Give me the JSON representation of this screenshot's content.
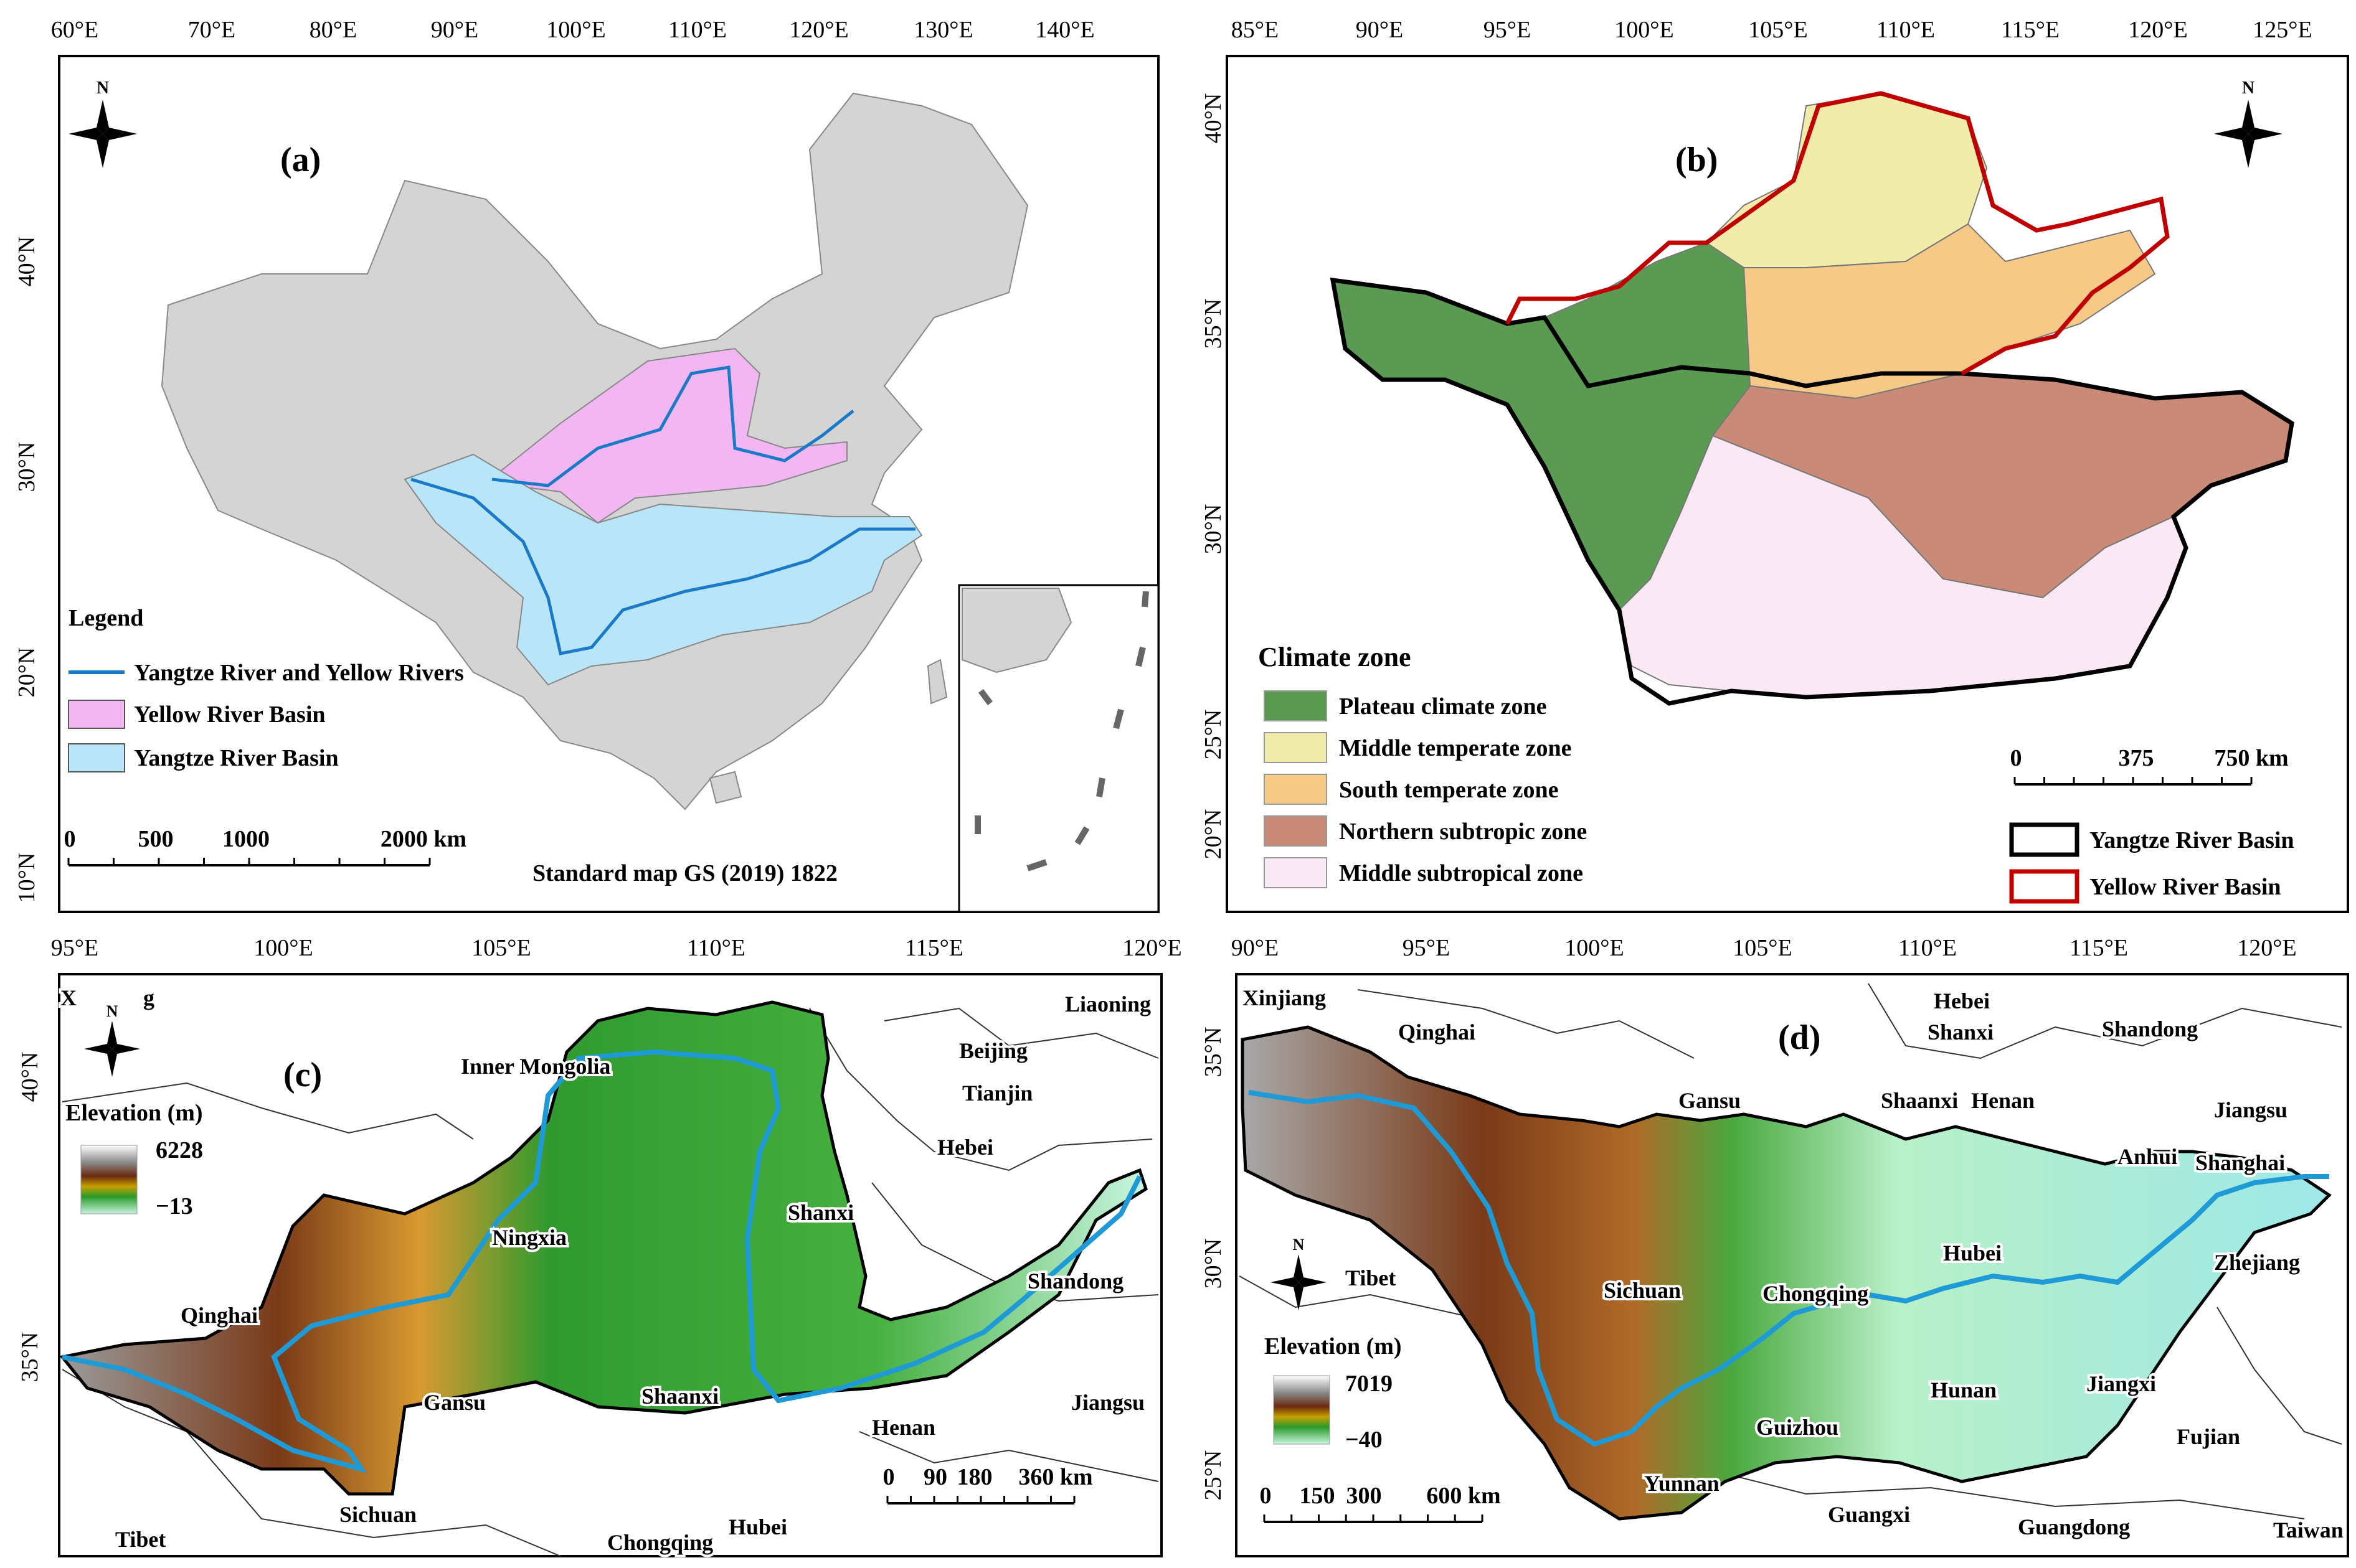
{
  "panel_a": {
    "letter": "(a)",
    "x_ticks": [
      "60°E",
      "70°E",
      "80°E",
      "90°E",
      "100°E",
      "110°E",
      "120°E",
      "130°E",
      "140°E"
    ],
    "y_ticks": [
      "40°N",
      "30°N",
      "20°N",
      "10°N"
    ],
    "legend_title": "Legend",
    "legend_items": [
      {
        "label": "Yangtze River and Yellow Rivers",
        "color": "#1a7ac8"
      },
      {
        "label": "Yellow River Basin",
        "color": "#f2b6f2"
      },
      {
        "label": "Yangtze River Basin",
        "color": "#b8e6f8"
      }
    ],
    "scale_labels": [
      "0",
      "500",
      "1000",
      "2000  km"
    ],
    "standard_map": "Standard map GS (2019) 1822",
    "compass_n": "N"
  },
  "panel_b": {
    "letter": "(b)",
    "x_ticks": [
      "85°E",
      "90°E",
      "95°E",
      "100°E",
      "105°E",
      "110°E",
      "115°E",
      "120°E",
      "125°E"
    ],
    "y_ticks": [
      "40°N",
      "35°N",
      "30°N",
      "25°N",
      "20°N"
    ],
    "legend_title": "Climate zone",
    "legend_items": [
      {
        "label": "Plateau climate zone",
        "color": "#5a9a52"
      },
      {
        "label": "Middle temperate zone",
        "color": "#f2ecaa"
      },
      {
        "label": "South temperate zone",
        "color": "#f7c987"
      },
      {
        "label": "Northern subtropic zone",
        "color": "#c98a78"
      },
      {
        "label": "Middle subtropical zone",
        "color": "#fbe8f5"
      }
    ],
    "scale_labels": [
      "0",
      "375",
      "750 km"
    ],
    "basin_items": [
      {
        "label": "Yangtze River Basin",
        "color": "#000000"
      },
      {
        "label": "Yellow River Basin",
        "color": "#c00000"
      }
    ],
    "compass_n": "N"
  },
  "panel_c": {
    "letter": "(c)",
    "x_ticks": [
      "95°E",
      "100°E",
      "105°E",
      "110°E",
      "115°E",
      "120°E"
    ],
    "y_ticks": [
      "40°N",
      "35°N"
    ],
    "elevation_title": "Elevation (m)",
    "elev_max": "6228",
    "elev_min": "−13",
    "provinces": [
      "Inner Mongolia",
      "Liaoning",
      "Beijing",
      "Tianjin",
      "Hebei",
      "Shanxi",
      "Ningxia",
      "Shandong",
      "Qinghai",
      "Gansu",
      "Shaanxi",
      "Henan",
      "Jiangsu",
      "Sichuan",
      "Tibet",
      "Chongqing",
      "Hubei",
      "X",
      "g"
    ],
    "scale_labels": [
      "0",
      "90",
      "180",
      "360 km"
    ],
    "compass_n": "N"
  },
  "panel_d": {
    "letter": "(d)",
    "x_ticks": [
      "90°E",
      "95°E",
      "100°E",
      "105°E",
      "110°E",
      "115°E",
      "120°E"
    ],
    "y_ticks": [
      "35°N",
      "30°N",
      "25°N"
    ],
    "elevation_title": "Elevation (m)",
    "elev_max": "7019",
    "elev_min": "−40",
    "provinces": [
      "Xinjiang",
      "Qinghai",
      "Gansu",
      "Shanxi",
      "Hebei",
      "Shandong",
      "Shaanxi",
      "Henan",
      "Jiangsu",
      "Anhui",
      "Shanghai",
      "Hubei",
      "Sichuan",
      "Chongqing",
      "Zhejiang",
      "Tibet",
      "Hunan",
      "Jiangxi",
      "Guizhou",
      "Fujian",
      "Yunnan",
      "Guangxi",
      "Guangdong",
      "Taiwan"
    ],
    "scale_labels": [
      "0",
      "150",
      "300",
      "600 km"
    ],
    "compass_n": "N"
  }
}
